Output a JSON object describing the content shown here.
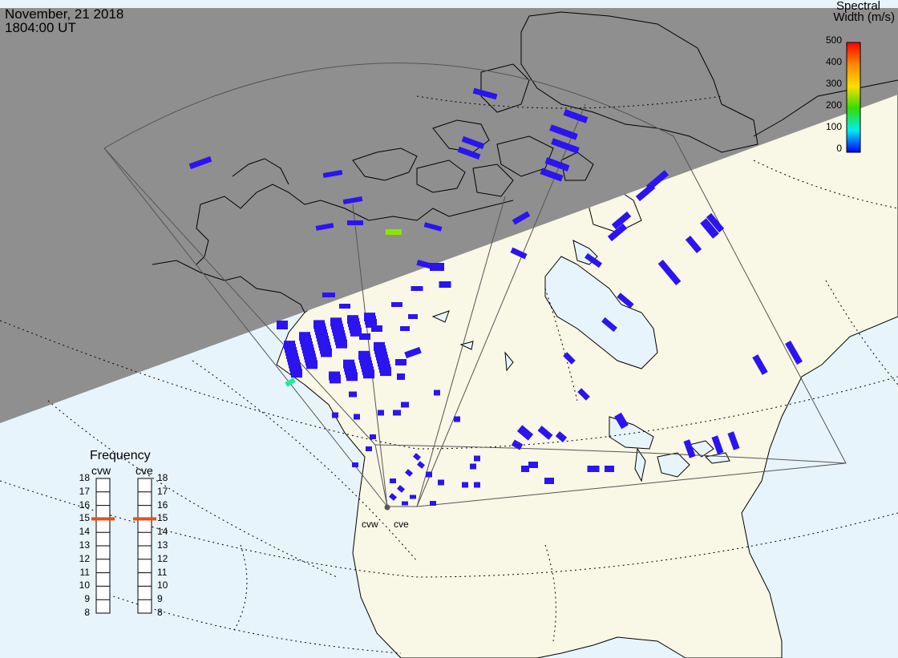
{
  "header": {
    "date": "November, 21 2018",
    "time": "1804:00 UT"
  },
  "color_scale": {
    "title_line1": "Spectral",
    "title_line2": "Width (m/s)",
    "ticks": [
      "500",
      "400",
      "300",
      "200",
      "100",
      "0"
    ],
    "colors": [
      "#ff0000",
      "#ff8800",
      "#ffdd00",
      "#33dd00",
      "#00eeee",
      "#0000ff"
    ]
  },
  "frequency_panel": {
    "title": "Frequency",
    "radars": [
      "cvw",
      "cve"
    ],
    "ticks": [
      "18",
      "17",
      "16",
      "15",
      "14",
      "13",
      "12",
      "11",
      "10",
      "9",
      "8"
    ],
    "selected_mhz": 15,
    "marker_color": "#e8501a"
  },
  "sites": [
    "cvw",
    "cve"
  ],
  "colors": {
    "night": "#8f8f8f",
    "land": "#f9f7e6",
    "ocean": "#e8f4fb",
    "echo": "#2b14f0",
    "echo_high": "#8ae800",
    "echo_mid": "#22e8a0"
  }
}
